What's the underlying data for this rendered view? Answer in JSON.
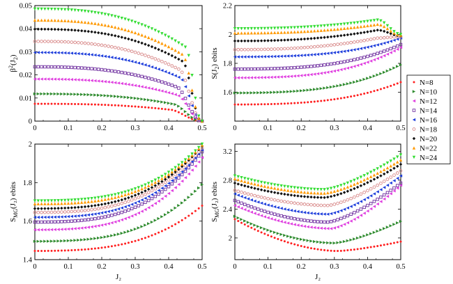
{
  "figure": {
    "legend_placement": "right",
    "legend": [
      {
        "name": "N=8",
        "color": "#ff2020",
        "marker": "dot"
      },
      {
        "name": "N=10",
        "color": "#2e8b2e",
        "marker": "triangle-right"
      },
      {
        "name": "N=12",
        "color": "#e040e0",
        "marker": "triangle-left"
      },
      {
        "name": "N=14",
        "color": "#7030a0",
        "marker": "square-open"
      },
      {
        "name": "N=16",
        "color": "#1f3fdc",
        "marker": "triangle-left"
      },
      {
        "name": "N=18",
        "color": "#d88888",
        "marker": "circle-open"
      },
      {
        "name": "N=20",
        "color": "#111111",
        "marker": "diamond"
      },
      {
        "name": "N=22",
        "color": "#ff9900",
        "marker": "triangle-up"
      },
      {
        "name": "N=24",
        "color": "#33dd33",
        "marker": "triangle-down"
      }
    ]
  },
  "chart_data": [
    {
      "type": "scatter",
      "id": "beta",
      "ylabel_main": "β",
      "ylabel_sup": "2",
      "ylabel_tail": "(J",
      "ylabel_sub": "2",
      "ylabel_end": ")",
      "xlabel": "",
      "xlim": [
        0,
        0.5
      ],
      "ylim": [
        0,
        0.05
      ],
      "xticks": [
        "0",
        "0.1",
        "0.2",
        "0.3",
        "0.4",
        "0.5"
      ],
      "yticks": [
        "0",
        "0.01",
        "0.02",
        "0.03",
        "0.04",
        "0.05"
      ],
      "ytick_values": [
        0,
        0.01,
        0.02,
        0.03,
        0.04,
        0.05
      ],
      "grid": false,
      "series": [
        {
          "name": "N=8",
          "y0": 0.0075,
          "ykink": 0.005,
          "yend": 0.0,
          "kink": 0.4,
          "shape": "decay"
        },
        {
          "name": "N=10",
          "y0": 0.0118,
          "ykink": 0.0075,
          "yend": 0.0,
          "kink": 0.41,
          "shape": "decay"
        },
        {
          "name": "N=12",
          "y0": 0.0182,
          "ykink": 0.0115,
          "yend": 0.0,
          "kink": 0.42,
          "shape": "decay"
        },
        {
          "name": "N=14",
          "y0": 0.0235,
          "ykink": 0.015,
          "yend": 0.0,
          "kink": 0.42,
          "shape": "decay"
        },
        {
          "name": "N=16",
          "y0": 0.0297,
          "ykink": 0.019,
          "yend": 0.0,
          "kink": 0.43,
          "shape": "decay"
        },
        {
          "name": "N=18",
          "y0": 0.0345,
          "ykink": 0.0225,
          "yend": 0.0,
          "kink": 0.43,
          "shape": "decay"
        },
        {
          "name": "N=20",
          "y0": 0.0398,
          "ykink": 0.026,
          "yend": 0.0,
          "kink": 0.44,
          "shape": "decay"
        },
        {
          "name": "N=22",
          "y0": 0.0437,
          "ykink": 0.029,
          "yend": 0.0,
          "kink": 0.44,
          "shape": "decay"
        },
        {
          "name": "N=24",
          "y0": 0.0485,
          "ykink": 0.032,
          "yend": 0.0,
          "kink": 0.45,
          "shape": "decay"
        }
      ]
    },
    {
      "type": "scatter",
      "id": "entropy",
      "ylabel_main": "S(J",
      "ylabel_sup": "",
      "ylabel_tail": "",
      "ylabel_sub": "2",
      "ylabel_end": ") ebits",
      "xlabel": "",
      "xlim": [
        0,
        0.5
      ],
      "ylim": [
        1.4,
        2.2
      ],
      "xticks": [
        "0",
        "0.1",
        "0.2",
        "0.3",
        "0.4",
        "0.5"
      ],
      "yticks": [
        "1.6",
        "1.8",
        "2",
        "2.2"
      ],
      "ytick_values": [
        1.6,
        1.8,
        2.0,
        2.2
      ],
      "grid": false,
      "series": [
        {
          "name": "N=8",
          "y0": 1.515,
          "ymid": 1.545,
          "ypeak": 1.59,
          "yend": 1.67,
          "shape": "rise"
        },
        {
          "name": "N=10",
          "y0": 1.595,
          "ymid": 1.63,
          "ypeak": 1.69,
          "yend": 1.79,
          "shape": "rise"
        },
        {
          "name": "N=12",
          "y0": 1.7,
          "ymid": 1.73,
          "ypeak": 1.8,
          "yend": 1.91,
          "shape": "rise"
        },
        {
          "name": "N=14",
          "y0": 1.76,
          "ymid": 1.79,
          "ypeak": 1.86,
          "yend": 1.93,
          "shape": "rise"
        },
        {
          "name": "N=16",
          "y0": 1.845,
          "ymid": 1.865,
          "ypeak": 1.925,
          "yend": 1.975,
          "shape": "rise"
        },
        {
          "name": "N=18",
          "y0": 1.895,
          "ymid": 1.915,
          "ypeak": 1.975,
          "yend": 1.985,
          "shape": "hump"
        },
        {
          "name": "N=20",
          "y0": 1.955,
          "ymid": 1.965,
          "ypeak": 2.03,
          "yend": 1.99,
          "shape": "hump"
        },
        {
          "name": "N=22",
          "y0": 2.01,
          "ymid": 2.02,
          "ypeak": 2.07,
          "yend": 1.995,
          "shape": "hump"
        },
        {
          "name": "N=24",
          "y0": 2.04,
          "ymid": 2.05,
          "ypeak": 2.1,
          "yend": 2.0,
          "shape": "hump"
        }
      ]
    },
    {
      "type": "scatter",
      "id": "smg",
      "ylabel_main": "S",
      "ylabel_sup": "",
      "ylabel_tail": "",
      "ylabel_sub": "MG",
      "ylabel_end": "(J₂) ebits",
      "xlabel": "J₂",
      "xlim": [
        0,
        0.5
      ],
      "ylim": [
        1.4,
        2.0
      ],
      "xticks": [
        "0",
        "0.1",
        "0.2",
        "0.3",
        "0.4",
        "0.5"
      ],
      "yticks": [
        "1.4",
        "1.6",
        "1.8",
        "2"
      ],
      "ytick_values": [
        1.4,
        1.6,
        1.8,
        2.0
      ],
      "grid": false,
      "series": [
        {
          "name": "N=8",
          "y0": 1.445,
          "ymid": 1.475,
          "ypeak": 1.55,
          "yend": 1.68,
          "shape": "rise"
        },
        {
          "name": "N=10",
          "y0": 1.495,
          "ymid": 1.525,
          "ypeak": 1.62,
          "yend": 1.79,
          "shape": "rise"
        },
        {
          "name": "N=12",
          "y0": 1.555,
          "ymid": 1.585,
          "ypeak": 1.7,
          "yend": 1.93,
          "shape": "rise"
        },
        {
          "name": "N=14",
          "y0": 1.595,
          "ymid": 1.625,
          "ypeak": 1.74,
          "yend": 1.96,
          "shape": "rise"
        },
        {
          "name": "N=16",
          "y0": 1.62,
          "ymid": 1.65,
          "ypeak": 1.77,
          "yend": 1.97,
          "shape": "rise"
        },
        {
          "name": "N=18",
          "y0": 1.645,
          "ymid": 1.675,
          "ypeak": 1.79,
          "yend": 1.98,
          "shape": "rise"
        },
        {
          "name": "N=20",
          "y0": 1.665,
          "ymid": 1.695,
          "ypeak": 1.815,
          "yend": 1.99,
          "shape": "rise"
        },
        {
          "name": "N=22",
          "y0": 1.69,
          "ymid": 1.715,
          "ypeak": 1.83,
          "yend": 1.995,
          "shape": "rise"
        },
        {
          "name": "N=24",
          "y0": 1.705,
          "ymid": 1.73,
          "ypeak": 1.85,
          "yend": 2.0,
          "shape": "rise"
        }
      ]
    },
    {
      "type": "scatter",
      "id": "smg2",
      "ylabel_main": "S",
      "ylabel_sup": "",
      "ylabel_tail": "",
      "ylabel_sub": "MG",
      "ylabel_end": "(J₂) ebits",
      "xlabel": "J₂",
      "xlim": [
        0,
        0.5
      ],
      "ylim": [
        1.7,
        3.3
      ],
      "xticks": [
        "0",
        "0.1",
        "0.2",
        "0.3",
        "0.4",
        "0.5"
      ],
      "yticks": [
        "2",
        "2.4",
        "2.8",
        "3.2"
      ],
      "ytick_values": [
        2.0,
        2.4,
        2.8,
        3.2
      ],
      "grid": false,
      "series": [
        {
          "name": "N=8",
          "y0": 2.26,
          "ymid": 1.82,
          "ypeak": 1.82,
          "yend": 1.95,
          "shape": "valley",
          "vx": 0.31
        },
        {
          "name": "N=10",
          "y0": 2.3,
          "ymid": 1.93,
          "ypeak": 1.93,
          "yend": 2.23,
          "shape": "valley",
          "vx": 0.3
        },
        {
          "name": "N=12",
          "y0": 2.45,
          "ymid": 2.13,
          "ypeak": 2.13,
          "yend": 2.73,
          "shape": "valley",
          "vx": 0.29
        },
        {
          "name": "N=14",
          "y0": 2.52,
          "ymid": 2.22,
          "ypeak": 2.22,
          "yend": 2.76,
          "shape": "valley",
          "vx": 0.28
        },
        {
          "name": "N=16",
          "y0": 2.61,
          "ymid": 2.33,
          "ypeak": 2.33,
          "yend": 2.86,
          "shape": "valley",
          "vx": 0.28
        },
        {
          "name": "N=18",
          "y0": 2.66,
          "ymid": 2.45,
          "ypeak": 2.45,
          "yend": 2.93,
          "shape": "valley",
          "vx": 0.28
        },
        {
          "name": "N=20",
          "y0": 2.76,
          "ymid": 2.56,
          "ypeak": 2.56,
          "yend": 3.02,
          "shape": "valley",
          "vx": 0.27
        },
        {
          "name": "N=22",
          "y0": 2.82,
          "ymid": 2.62,
          "ypeak": 2.62,
          "yend": 3.08,
          "shape": "valley",
          "vx": 0.27
        },
        {
          "name": "N=24",
          "y0": 2.86,
          "ymid": 2.67,
          "ypeak": 2.67,
          "yend": 3.15,
          "shape": "valley",
          "vx": 0.27
        }
      ]
    }
  ]
}
